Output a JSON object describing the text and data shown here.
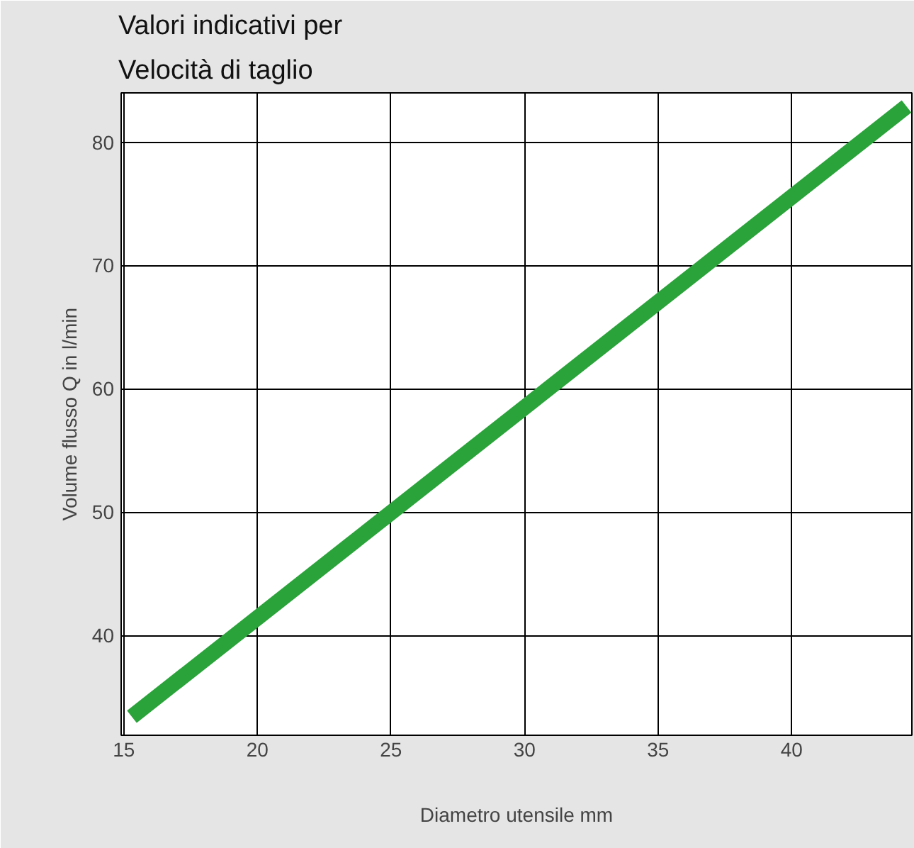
{
  "chart_data": {
    "type": "line",
    "title": "Valori indicativi per\nVelocità di taglio",
    "xlabel": "Diametro utensile mm",
    "ylabel": "Volume flusso Q in l/min",
    "x": [
      15.3,
      44.3
    ],
    "series": [
      {
        "color": "#2aa33a",
        "values": [
          33.4,
          82.9
        ]
      }
    ],
    "xlim": [
      14.9,
      44.5
    ],
    "ylim": [
      31.9,
      84
    ],
    "xticks": [
      15,
      20,
      25,
      30,
      35,
      40
    ],
    "yticks": [
      40,
      50,
      60,
      70,
      80
    ],
    "grid": true,
    "marker": "none",
    "line_style": "solid"
  }
}
